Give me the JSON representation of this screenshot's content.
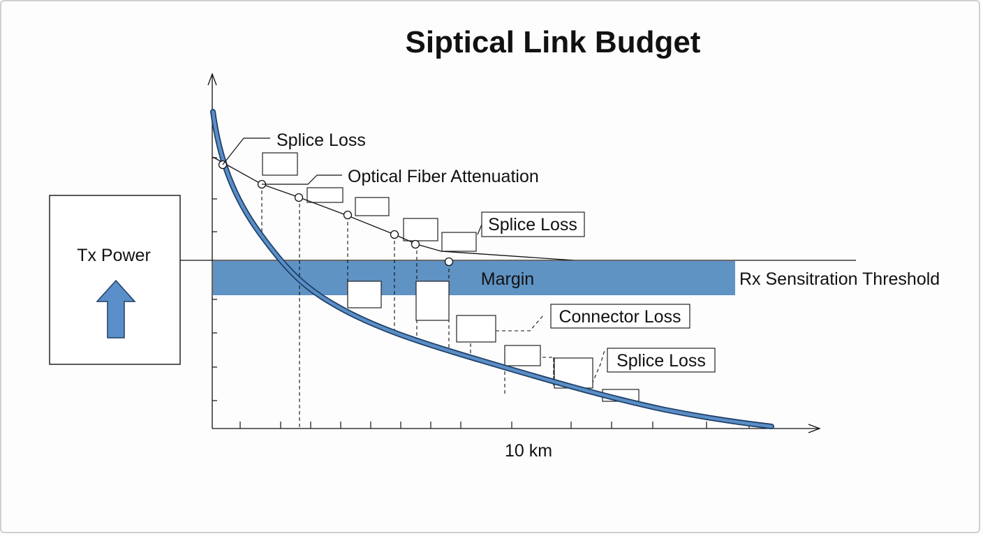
{
  "title": "Siptical Link Budget",
  "tx_box": {
    "label": "Tx Power"
  },
  "labels": {
    "splice_loss_top": "Splice Loss",
    "fiber_attenuation": "Optical Fiber Attenuation",
    "splice_loss_boxed_1": "Splice Loss",
    "margin": "Margin",
    "rx_threshold": "Rx Sensitration Threshold",
    "connector_loss": "Connector Loss",
    "splice_loss_boxed_2": "Splice Loss"
  },
  "x_axis": {
    "label": "10 km"
  },
  "colors": {
    "margin_band": "#5f93c4",
    "curve_fill": "#5a8ec6",
    "curve_edge": "#1f3f66",
    "arrow_fill": "#5a8fc9",
    "line": "#111111"
  },
  "icons": {
    "tx_arrow": "up-arrow-icon"
  }
}
